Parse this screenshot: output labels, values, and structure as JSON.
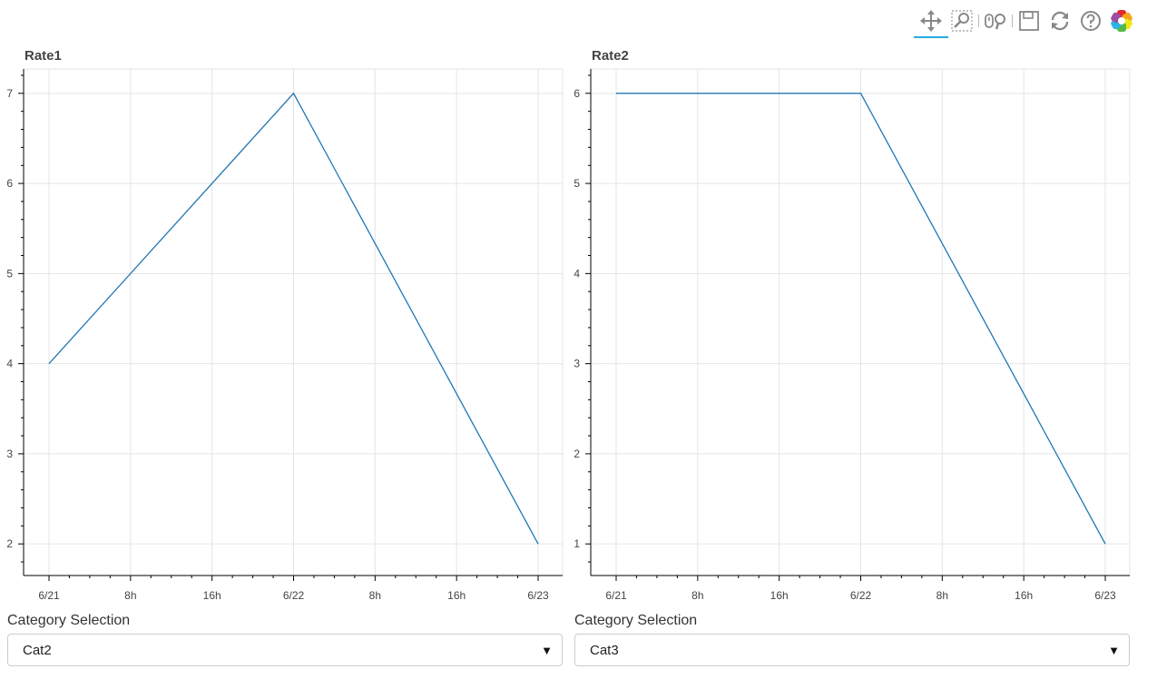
{
  "toolbar": {
    "tools": [
      {
        "name": "pan-icon",
        "label": "Pan",
        "active": true
      },
      {
        "name": "box-zoom-icon",
        "label": "Box Zoom"
      },
      {
        "name": "wheel-zoom-icon",
        "label": "Wheel Zoom"
      },
      {
        "name": "save-icon",
        "label": "Save"
      },
      {
        "name": "reset-icon",
        "label": "Reset"
      },
      {
        "name": "help-icon",
        "label": "Help"
      },
      {
        "name": "bokeh-logo-icon",
        "label": "Bokeh"
      }
    ]
  },
  "chart_data": [
    {
      "type": "line",
      "title": "Rate1",
      "xlabel": "",
      "ylabel": "",
      "x": [
        0,
        1,
        2
      ],
      "x_ticks": [
        "6/21",
        "8h",
        "16h",
        "6/22",
        "8h",
        "16h",
        "6/23"
      ],
      "values": [
        4,
        7,
        2
      ],
      "ylim": [
        1.75,
        7.25
      ],
      "y_ticks": [
        2,
        3,
        4,
        5,
        6,
        7
      ],
      "line_color": "#1f77b4",
      "grid": true
    },
    {
      "type": "line",
      "title": "Rate2",
      "xlabel": "",
      "ylabel": "",
      "x": [
        0,
        1,
        2
      ],
      "x_ticks": [
        "6/21",
        "8h",
        "16h",
        "6/22",
        "8h",
        "16h",
        "6/23"
      ],
      "values": [
        6,
        6,
        1
      ],
      "ylim": [
        0.75,
        6.25
      ],
      "y_ticks": [
        1,
        2,
        3,
        4,
        5,
        6
      ],
      "line_color": "#1f77b4",
      "grid": true
    }
  ],
  "selectors": [
    {
      "label": "Category Selection",
      "value": "Cat2"
    },
    {
      "label": "Category Selection",
      "value": "Cat3"
    }
  ]
}
